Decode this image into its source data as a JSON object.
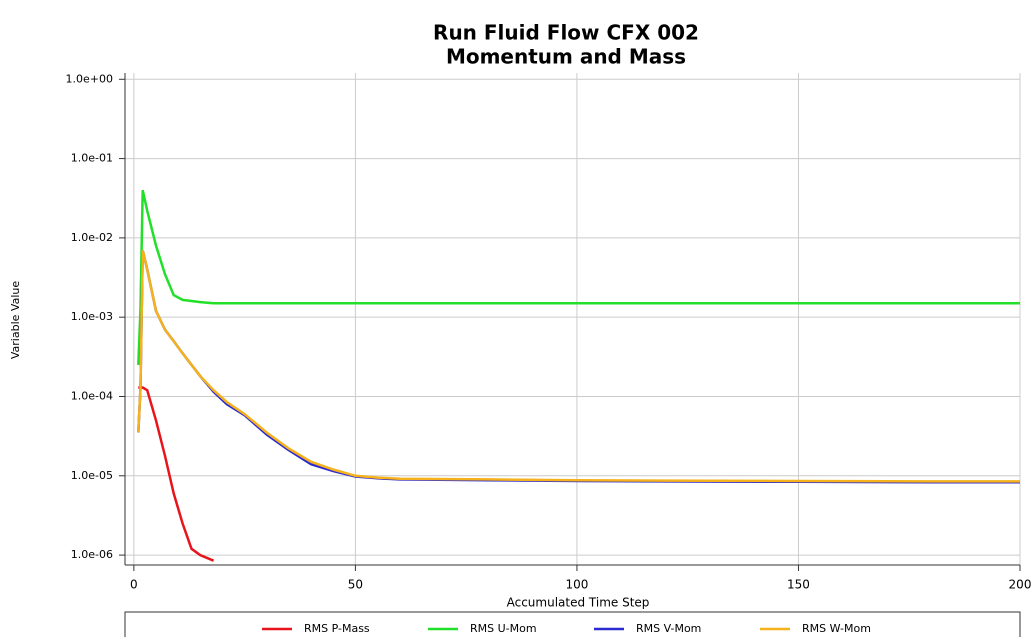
{
  "chart_data": {
    "type": "line",
    "title": "Run Fluid Flow CFX 002",
    "subtitle": "Momentum and Mass",
    "xlabel": "Accumulated Time Step",
    "ylabel": "Variable Value",
    "x": [
      1,
      1.5,
      2,
      3,
      5,
      7,
      9,
      11,
      13,
      15,
      18,
      21,
      25,
      30,
      35,
      40,
      45,
      50,
      55,
      60,
      80,
      100,
      120,
      150,
      180,
      200
    ],
    "series": [
      {
        "name": "RMS P-Mass",
        "color": "#e8141c",
        "values": [
          0.00013,
          0.00013,
          0.00013,
          0.00012,
          5e-05,
          1.8e-05,
          6e-06,
          2.5e-06,
          1.2e-06,
          1e-06,
          8.5e-07,
          null,
          null,
          null,
          null,
          null,
          null,
          null,
          null,
          null,
          null,
          null,
          null,
          null,
          null,
          null
        ]
      },
      {
        "name": "RMS U-Mom",
        "color": "#22e02a",
        "values": [
          0.00025,
          0.0013,
          0.04,
          0.022,
          0.008,
          0.0035,
          0.0019,
          0.00165,
          0.0016,
          0.00155,
          0.0015,
          0.0015,
          0.0015,
          0.0015,
          0.0015,
          0.0015,
          0.0015,
          0.0015,
          0.0015,
          0.0015,
          0.0015,
          0.0015,
          0.0015,
          0.0015,
          0.0015,
          0.0015
        ]
      },
      {
        "name": "RMS V-Mom",
        "color": "#2a2ad0",
        "values": [
          3.5e-05,
          0.00013,
          0.007,
          0.004,
          0.0012,
          0.0007,
          0.0005,
          0.00035,
          0.00025,
          0.00018,
          0.000115,
          8e-05,
          5.8e-05,
          3.3e-05,
          2.1e-05,
          1.4e-05,
          1.15e-05,
          9.8e-06,
          9.3e-06,
          9e-06,
          8.8e-06,
          8.6e-06,
          8.5e-06,
          8.4e-06,
          8.3e-06,
          8.3e-06
        ]
      },
      {
        "name": "RMS W-Mom",
        "color": "#f5b21c",
        "values": [
          3.5e-05,
          0.00013,
          0.007,
          0.004,
          0.0012,
          0.0007,
          0.0005,
          0.00035,
          0.00025,
          0.00018,
          0.00012,
          8.5e-05,
          6e-05,
          3.5e-05,
          2.2e-05,
          1.5e-05,
          1.2e-05,
          1e-05,
          9.5e-06,
          9.2e-06,
          9e-06,
          8.8e-06,
          8.7e-06,
          8.6e-06,
          8.5e-06,
          8.5e-06
        ]
      }
    ],
    "xlim": [
      -2,
      200
    ],
    "xticks": [
      0,
      50,
      100,
      150,
      200
    ],
    "ylim": [
      7.5e-07,
      1.2
    ],
    "log_y": true,
    "yticks": [
      {
        "value": 1,
        "label": "1.0e+00"
      },
      {
        "value": 0.1,
        "label": "1.0e-01"
      },
      {
        "value": 0.01,
        "label": "1.0e-02"
      },
      {
        "value": 0.001,
        "label": "1.0e-03"
      },
      {
        "value": 0.0001,
        "label": "1.0e-04"
      },
      {
        "value": 1e-05,
        "label": "1.0e-05"
      },
      {
        "value": 1e-06,
        "label": "1.0e-06"
      }
    ],
    "grid": true,
    "legend": "bottom"
  }
}
